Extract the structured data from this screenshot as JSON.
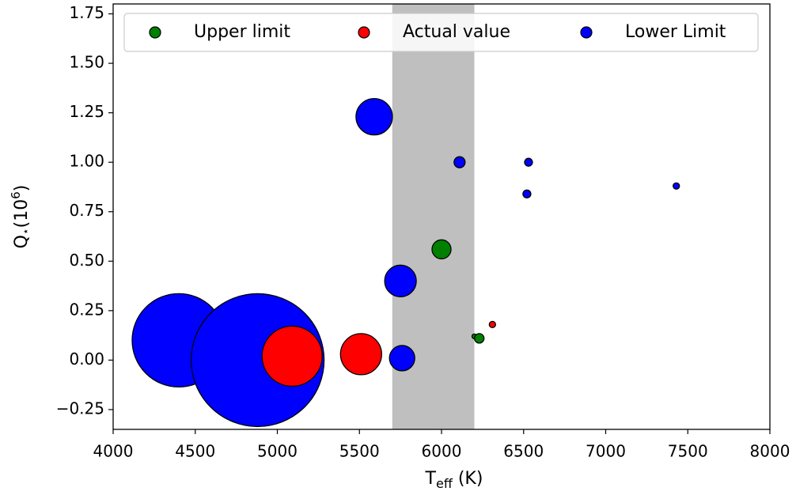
{
  "chart_data": {
    "type": "scatter",
    "xlabel": [
      "T",
      "eff",
      " (K)"
    ],
    "ylabel": [
      "Q",
      "⋆",
      "(10",
      "6",
      ")"
    ],
    "xlim": [
      4000,
      8000
    ],
    "ylim": [
      -0.35,
      1.8
    ],
    "xticks": [
      4000,
      4500,
      5000,
      5500,
      6000,
      6500,
      7000,
      7500,
      8000
    ],
    "yticks": [
      {
        "value": -0.25,
        "label": "−0.25"
      },
      {
        "value": 0,
        "label": "0.00"
      },
      {
        "value": 0.25,
        "label": "0.25"
      },
      {
        "value": 0.5,
        "label": "0.50"
      },
      {
        "value": 0.75,
        "label": "0.75"
      },
      {
        "value": 1,
        "label": "1.00"
      },
      {
        "value": 1.25,
        "label": "1.25"
      },
      {
        "value": 1.5,
        "label": "1.50"
      },
      {
        "value": 1.75,
        "label": "1.75"
      }
    ],
    "shaded_region": [
      5700,
      6200
    ],
    "shaded_color": "#bfbfbf",
    "legend": "upper right",
    "series": [
      {
        "name": "Upper limit",
        "color": "green",
        "x": [
          6000,
          6200,
          6230
        ],
        "values": [
          0.56,
          0.12,
          0.11
        ],
        "sizes": [
          12,
          3,
          6
        ]
      },
      {
        "name": "Actual value",
        "color": "red",
        "x": [
          5090,
          5510,
          6310
        ],
        "values": [
          0.02,
          0.03,
          0.18
        ],
        "sizes": [
          38,
          26,
          4
        ]
      },
      {
        "name": "Lower Limit",
        "color": "blue",
        "x": [
          4400,
          4880,
          5590,
          5750,
          5760,
          6110,
          6530,
          6520,
          7430
        ],
        "values": [
          0.1,
          0.0,
          1.23,
          0.4,
          0.01,
          1.0,
          1.0,
          0.84,
          0.88
        ],
        "sizes": [
          59,
          84,
          23,
          20,
          16,
          7,
          5,
          5,
          4
        ]
      }
    ]
  }
}
